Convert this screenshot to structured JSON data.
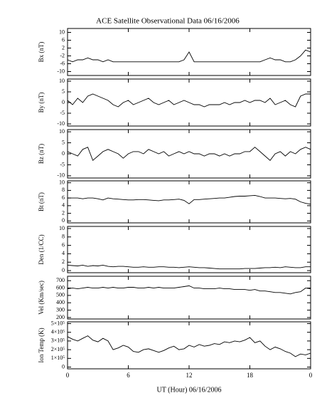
{
  "chart_data": [
    {
      "type": "line",
      "title": "ACE Satellite Observational Data   06/16/2006",
      "ylabel": "Bx (nT)",
      "color": "#000000",
      "x": [
        0,
        0.5,
        1,
        1.5,
        2,
        2.5,
        3,
        3.5,
        4,
        4.5,
        5,
        5.5,
        6,
        6.5,
        7,
        7.5,
        8,
        8.5,
        9,
        9.5,
        10,
        10.5,
        11,
        11.5,
        12,
        12.5,
        13,
        13.5,
        14,
        14.5,
        15,
        15.5,
        16,
        16.5,
        17,
        17.5,
        18,
        18.5,
        19,
        19.5,
        20,
        20.5,
        21,
        21.5,
        22,
        22.5,
        23,
        23.5,
        24
      ],
      "values": [
        -4,
        -5,
        -4,
        -4,
        -3,
        -4,
        -4,
        -5,
        -4,
        -5,
        -5,
        -5,
        -5,
        -5,
        -5,
        -5,
        -5,
        -5,
        -5,
        -5,
        -5,
        -5,
        -5,
        -4,
        0,
        -5,
        -5,
        -5,
        -5,
        -5,
        -5,
        -5,
        -5,
        -5,
        -5,
        -5,
        -5,
        -5,
        -5,
        -4,
        -3,
        -4,
        -4,
        -5,
        -5,
        -4,
        -2,
        1,
        0
      ],
      "ylim": [
        -12,
        12
      ],
      "yticks": [
        -10,
        -6,
        -2,
        2,
        6,
        10
      ]
    },
    {
      "type": "line",
      "ylabel": "By (nT)",
      "color": "#000000",
      "x": [
        0,
        0.5,
        1,
        1.5,
        2,
        2.5,
        3,
        3.5,
        4,
        4.5,
        5,
        5.5,
        6,
        6.5,
        7,
        7.5,
        8,
        8.5,
        9,
        9.5,
        10,
        10.5,
        11,
        11.5,
        12,
        12.5,
        13,
        13.5,
        14,
        14.5,
        15,
        15.5,
        16,
        16.5,
        17,
        17.5,
        18,
        18.5,
        19,
        19.5,
        20,
        20.5,
        21,
        21.5,
        22,
        22.5,
        23,
        23.5,
        24
      ],
      "values": [
        1,
        -1,
        2,
        0,
        3,
        4,
        3,
        2,
        1,
        -1,
        -2,
        0,
        1,
        -1,
        0,
        1,
        2,
        0,
        -1,
        0,
        1,
        -1,
        0,
        1,
        0,
        -1,
        -1,
        -2,
        -1,
        -1,
        -1,
        0,
        -1,
        0,
        0,
        1,
        0,
        1,
        1,
        0,
        2,
        -1,
        0,
        1,
        -1,
        -2,
        3,
        4,
        4
      ],
      "ylim": [
        -11,
        11
      ],
      "yticks": [
        -10,
        -5,
        0,
        5,
        10
      ]
    },
    {
      "type": "line",
      "ylabel": "Bz (nT)",
      "color": "#000000",
      "x": [
        0,
        0.5,
        1,
        1.5,
        2,
        2.5,
        3,
        3.5,
        4,
        4.5,
        5,
        5.5,
        6,
        6.5,
        7,
        7.5,
        8,
        8.5,
        9,
        9.5,
        10,
        10.5,
        11,
        11.5,
        12,
        12.5,
        13,
        13.5,
        14,
        14.5,
        15,
        15.5,
        16,
        16.5,
        17,
        17.5,
        18,
        18.5,
        19,
        19.5,
        20,
        20.5,
        21,
        21.5,
        22,
        22.5,
        23,
        23.5,
        24
      ],
      "values": [
        1,
        0,
        -1,
        2,
        3,
        -3,
        -1,
        1,
        2,
        1,
        0,
        -2,
        0,
        1,
        1,
        0,
        2,
        1,
        0,
        1,
        -1,
        0,
        1,
        0,
        1,
        0,
        0,
        -1,
        0,
        0,
        -1,
        0,
        -1,
        0,
        0,
        1,
        1,
        3,
        1,
        -1,
        -3,
        0,
        1,
        -1,
        1,
        0,
        2,
        3,
        2
      ],
      "ylim": [
        -11,
        11
      ],
      "yticks": [
        -10,
        -5,
        0,
        5,
        10
      ]
    },
    {
      "type": "line",
      "ylabel": "Bt (nT)",
      "color": "#000000",
      "x": [
        0,
        0.5,
        1,
        1.5,
        2,
        2.5,
        3,
        3.5,
        4,
        4.5,
        5,
        5.5,
        6,
        6.5,
        7,
        7.5,
        8,
        8.5,
        9,
        9.5,
        10,
        10.5,
        11,
        11.5,
        12,
        12.5,
        13,
        13.5,
        14,
        14.5,
        15,
        15.5,
        16,
        16.5,
        17,
        17.5,
        18,
        18.5,
        19,
        19.5,
        20,
        20.5,
        21,
        21.5,
        22,
        22.5,
        23,
        23.5,
        24
      ],
      "values": [
        6,
        6,
        6,
        5.8,
        6,
        6,
        5.8,
        5.5,
        6,
        5.8,
        5.7,
        5.6,
        5.5,
        5.5,
        5.6,
        5.6,
        5.5,
        5.4,
        5.3,
        5.5,
        5.5,
        5.6,
        5.7,
        5.4,
        4.5,
        5.6,
        5.6,
        5.7,
        5.8,
        5.9,
        6,
        6,
        6.2,
        6.4,
        6.5,
        6.5,
        6.6,
        6.7,
        6.4,
        6,
        6,
        6,
        5.9,
        5.8,
        5.9,
        5.7,
        5,
        4.6,
        4.4
      ],
      "ylim": [
        -0.5,
        10.5
      ],
      "yticks": [
        0,
        2,
        4,
        6,
        8,
        10
      ]
    },
    {
      "type": "line",
      "ylabel": "Den (1/CC)",
      "color": "#000000",
      "x": [
        0,
        0.5,
        1,
        1.5,
        2,
        2.5,
        3,
        3.5,
        4,
        4.5,
        5,
        5.5,
        6,
        6.5,
        7,
        7.5,
        8,
        8.5,
        9,
        9.5,
        10,
        10.5,
        11,
        11.5,
        12,
        12.5,
        13,
        13.5,
        14,
        14.5,
        15,
        15.5,
        16,
        16.5,
        17,
        17.5,
        18,
        18.5,
        19,
        19.5,
        20,
        20.5,
        21,
        21.5,
        22,
        22.5,
        23,
        23.5,
        24
      ],
      "values": [
        1.3,
        1.2,
        1.1,
        1.3,
        1,
        1.2,
        1.1,
        1.3,
        1,
        0.9,
        1,
        1,
        0.9,
        0.8,
        0.8,
        0.9,
        0.8,
        0.8,
        0.9,
        0.9,
        0.8,
        0.8,
        0.7,
        0.8,
        0.9,
        0.8,
        0.7,
        0.7,
        0.6,
        0.5,
        0.4,
        0.4,
        0.4,
        0.4,
        0.4,
        0.5,
        0.5,
        0.5,
        0.6,
        0.7,
        0.7,
        0.8,
        0.7,
        0.9,
        0.8,
        0.7,
        0.7,
        0.9,
        0.9
      ],
      "ylim": [
        -0.5,
        10.5
      ],
      "yticks": [
        0,
        2,
        4,
        6,
        8,
        10
      ]
    },
    {
      "type": "line",
      "ylabel": "Vel (Km/sec)",
      "color": "#000000",
      "x": [
        0,
        0.5,
        1,
        1.5,
        2,
        2.5,
        3,
        3.5,
        4,
        4.5,
        5,
        5.5,
        6,
        6.5,
        7,
        7.5,
        8,
        8.5,
        9,
        9.5,
        10,
        10.5,
        11,
        11.5,
        12,
        12.5,
        13,
        13.5,
        14,
        14.5,
        15,
        15.5,
        16,
        16.5,
        17,
        17.5,
        18,
        18.5,
        19,
        19.5,
        20,
        20.5,
        21,
        21.5,
        22,
        22.5,
        23,
        23.5,
        24
      ],
      "values": [
        590,
        600,
        590,
        600,
        610,
        600,
        600,
        610,
        600,
        610,
        600,
        600,
        610,
        610,
        600,
        600,
        610,
        600,
        610,
        600,
        600,
        600,
        610,
        620,
        630,
        600,
        600,
        590,
        590,
        590,
        600,
        590,
        590,
        580,
        580,
        580,
        570,
        580,
        560,
        560,
        550,
        540,
        540,
        530,
        520,
        540,
        550,
        600,
        590
      ],
      "ylim": [
        180,
        760
      ],
      "yticks": [
        200,
        300,
        400,
        500,
        600,
        700
      ]
    },
    {
      "type": "line",
      "ylabel": "Ion Temp (K)",
      "xlabel": "UT (Hour)  06/16/2006",
      "color": "#000000",
      "x": [
        0,
        0.5,
        1,
        1.5,
        2,
        2.5,
        3,
        3.5,
        4,
        4.5,
        5,
        5.5,
        6,
        6.5,
        7,
        7.5,
        8,
        8.5,
        9,
        9.5,
        10,
        10.5,
        11,
        11.5,
        12,
        12.5,
        13,
        13.5,
        14,
        14.5,
        15,
        15.5,
        16,
        16.5,
        17,
        17.5,
        18,
        18.5,
        19,
        19.5,
        20,
        20.5,
        21,
        21.5,
        22,
        22.5,
        23,
        23.5,
        24
      ],
      "values": [
        350000,
        320000,
        300000,
        330000,
        360000,
        310000,
        290000,
        330000,
        300000,
        200000,
        220000,
        250000,
        230000,
        180000,
        170000,
        200000,
        210000,
        190000,
        170000,
        190000,
        220000,
        240000,
        200000,
        210000,
        250000,
        230000,
        260000,
        240000,
        250000,
        270000,
        260000,
        290000,
        280000,
        300000,
        290000,
        310000,
        340000,
        280000,
        300000,
        240000,
        200000,
        230000,
        210000,
        180000,
        160000,
        120000,
        150000,
        140000,
        160000
      ],
      "ylim": [
        -20000,
        520000
      ],
      "yticks": [
        0,
        {
          "value": 100000,
          "label": "1×10⁵"
        },
        {
          "value": 200000,
          "label": "2×10⁵"
        },
        {
          "value": 300000,
          "label": "3×10⁵"
        },
        {
          "value": 400000,
          "label": "4×10⁵"
        },
        {
          "value": 500000,
          "label": "5×10⁵"
        }
      ],
      "xlim": [
        0,
        24
      ],
      "xticks": [
        0,
        6,
        12,
        18,
        {
          "value": 24,
          "label": "0"
        }
      ]
    }
  ]
}
